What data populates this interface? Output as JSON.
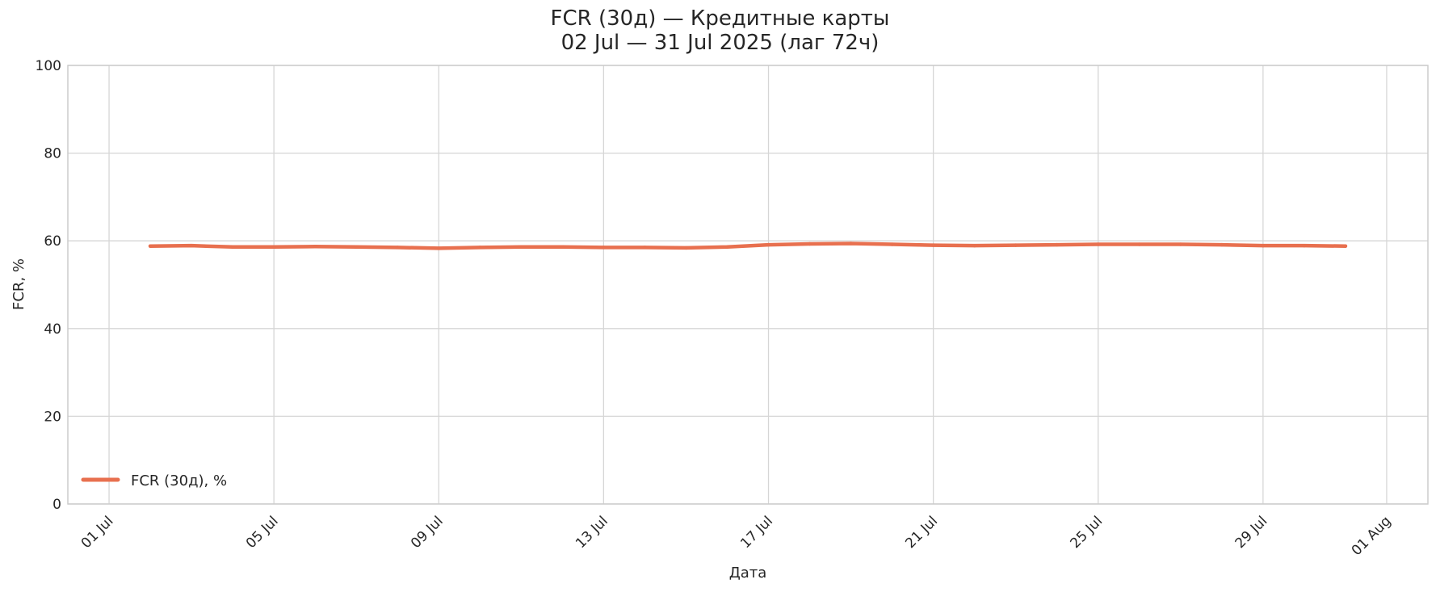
{
  "chart_data": {
    "type": "line",
    "title": "FCR (30д) — Кредитные карты",
    "subtitle": "02 Jul — 31 Jul 2025 (лаг 72ч)",
    "xlabel": "Дата",
    "ylabel": "FCR, %",
    "ylim": [
      0,
      100
    ],
    "xlim": [
      "2025-06-30",
      "2025-08-02"
    ],
    "y_ticks": [
      0,
      20,
      40,
      60,
      80,
      100
    ],
    "x_ticks": [
      {
        "date": "2025-07-01",
        "label": "01 Jul"
      },
      {
        "date": "2025-07-05",
        "label": "05 Jul"
      },
      {
        "date": "2025-07-09",
        "label": "09 Jul"
      },
      {
        "date": "2025-07-13",
        "label": "13 Jul"
      },
      {
        "date": "2025-07-17",
        "label": "17 Jul"
      },
      {
        "date": "2025-07-21",
        "label": "21 Jul"
      },
      {
        "date": "2025-07-25",
        "label": "25 Jul"
      },
      {
        "date": "2025-07-29",
        "label": "29 Jul"
      },
      {
        "date": "2025-08-01",
        "label": "01 Aug"
      }
    ],
    "grid": true,
    "legend_position": "lower-left",
    "series": [
      {
        "name": "FCR (30д), %",
        "color": "#E8704F",
        "x": [
          "2025-07-02",
          "2025-07-03",
          "2025-07-04",
          "2025-07-05",
          "2025-07-06",
          "2025-07-07",
          "2025-07-08",
          "2025-07-09",
          "2025-07-10",
          "2025-07-11",
          "2025-07-12",
          "2025-07-13",
          "2025-07-14",
          "2025-07-15",
          "2025-07-16",
          "2025-07-17",
          "2025-07-18",
          "2025-07-19",
          "2025-07-20",
          "2025-07-21",
          "2025-07-22",
          "2025-07-23",
          "2025-07-24",
          "2025-07-25",
          "2025-07-26",
          "2025-07-27",
          "2025-07-28",
          "2025-07-29",
          "2025-07-30",
          "2025-07-31"
        ],
        "values": [
          58.8,
          58.9,
          58.6,
          58.6,
          58.7,
          58.6,
          58.5,
          58.3,
          58.5,
          58.6,
          58.6,
          58.5,
          58.5,
          58.4,
          58.6,
          59.1,
          59.3,
          59.4,
          59.2,
          59.0,
          58.9,
          59.0,
          59.1,
          59.2,
          59.2,
          59.2,
          59.1,
          58.9,
          58.9,
          58.8
        ]
      }
    ]
  }
}
